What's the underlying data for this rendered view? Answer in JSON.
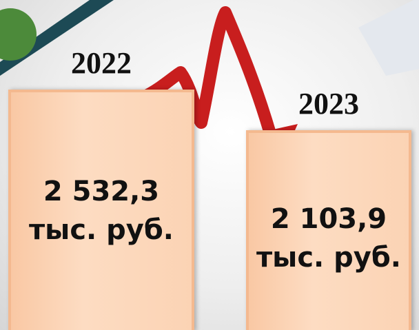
{
  "chart_data": {
    "type": "bar",
    "categories": [
      "2022",
      "2023"
    ],
    "values": [
      2532.3,
      2103.9
    ],
    "value_labels": [
      "2 532,3\nтыс. руб.",
      "2 103,9\nтыс. руб."
    ],
    "color": "#fddcc2"
  }
}
